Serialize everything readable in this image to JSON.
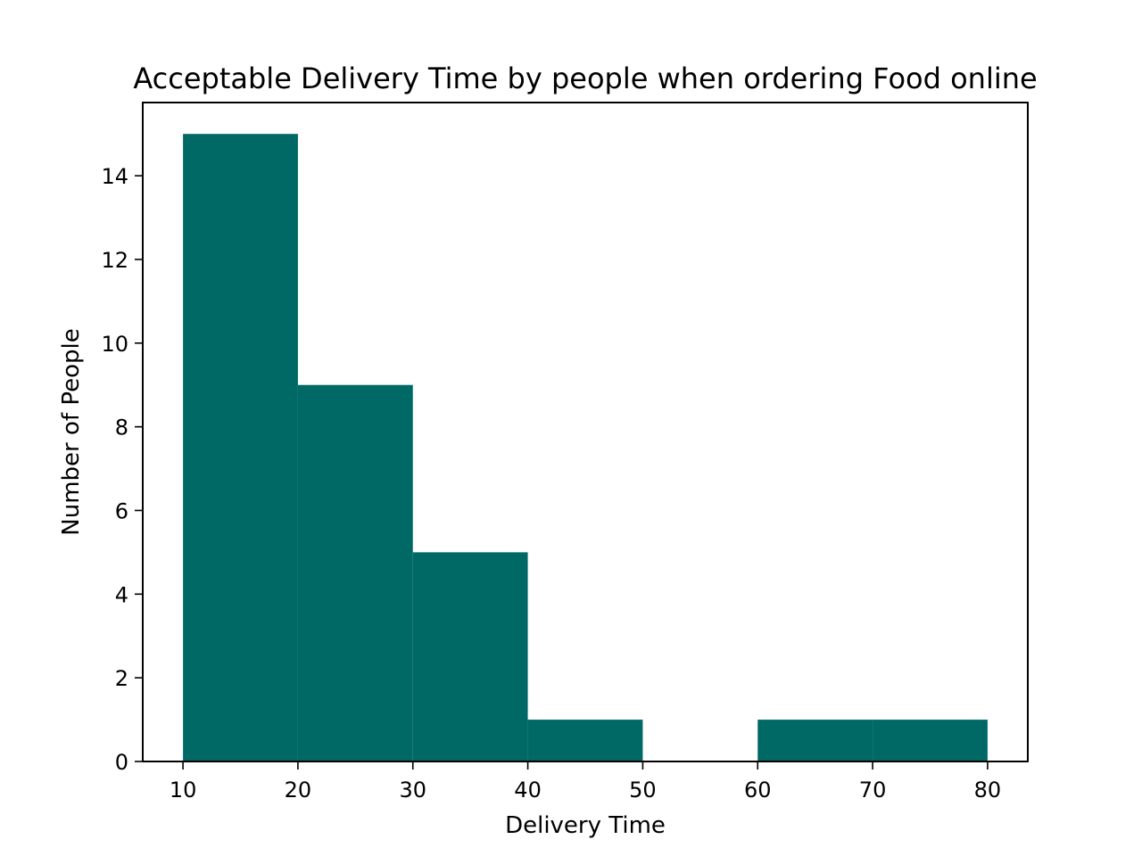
{
  "chart_data": {
    "type": "bar",
    "title": "Acceptable Delivery Time by people when ordering Food online",
    "xlabel": "Delivery Time",
    "ylabel": "Number of People",
    "bins": [
      {
        "start": 10,
        "end": 20,
        "count": 15
      },
      {
        "start": 20,
        "end": 30,
        "count": 9
      },
      {
        "start": 30,
        "end": 40,
        "count": 5
      },
      {
        "start": 40,
        "end": 50,
        "count": 1
      },
      {
        "start": 50,
        "end": 60,
        "count": 0
      },
      {
        "start": 60,
        "end": 70,
        "count": 1
      },
      {
        "start": 70,
        "end": 80,
        "count": 1
      }
    ],
    "xlim": [
      6.5,
      83.5
    ],
    "ylim": [
      0,
      15.75
    ],
    "xticks": [
      10,
      20,
      30,
      40,
      50,
      60,
      70,
      80
    ],
    "yticks": [
      0,
      2,
      4,
      6,
      8,
      10,
      12,
      14
    ],
    "grid": false,
    "bar_color": "#006966"
  }
}
